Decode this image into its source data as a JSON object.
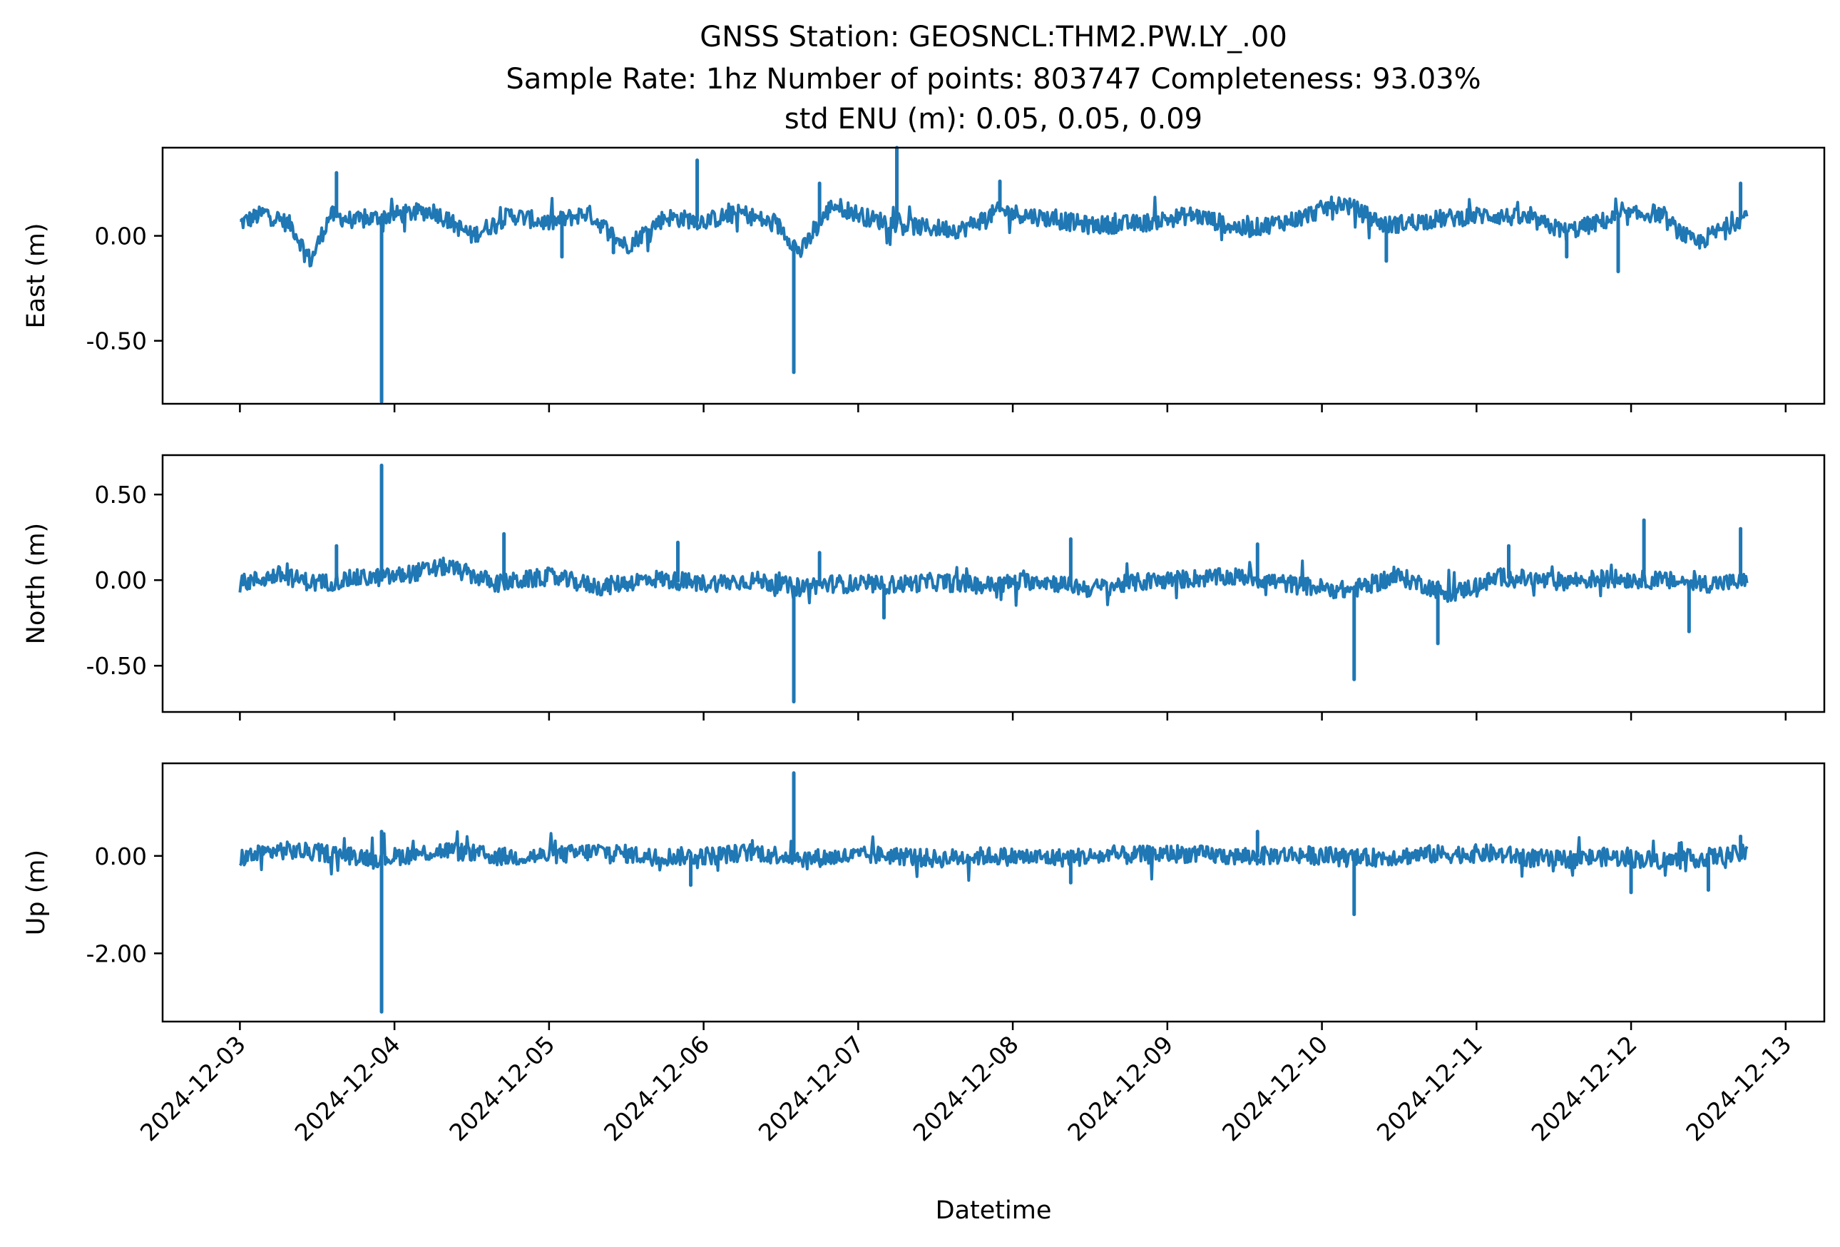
{
  "title": {
    "line1": "GNSS Station: GEOSNCL:THM2.PW.LY_.00",
    "line2": "Sample Rate: 1hz   Number of points: 803747    Completeness:  93.03%",
    "line3": "std ENU (m):  0.05, 0.05, 0.09"
  },
  "colors": {
    "series": "#1f77b4",
    "axes": "#000000",
    "background": "#ffffff"
  },
  "chart_data": {
    "type": "line",
    "xlabel": "Datetime",
    "x_ticks": [
      "2024-12-03",
      "2024-12-04",
      "2024-12-05",
      "2024-12-06",
      "2024-12-07",
      "2024-12-08",
      "2024-12-09",
      "2024-12-10",
      "2024-12-11",
      "2024-12-12",
      "2024-12-13"
    ],
    "x_range": [
      "2024-12-02T12:00",
      "2024-12-13T06:00"
    ],
    "data_range": [
      "2024-12-03T00:00",
      "2024-12-12T18:00"
    ],
    "grid": false,
    "shared_x": true,
    "panels": [
      {
        "id": "east",
        "ylabel": "East (m)",
        "ylim": [
          -0.8,
          0.42
        ],
        "y_ticks": [
          {
            "value": 0.0,
            "label": "0.00"
          },
          {
            "value": -0.5,
            "label": "-0.50"
          }
        ],
        "baseline": [
          [
            "2024-12-03T00:00",
            0.06
          ],
          [
            "2024-12-03T04:00",
            0.11
          ],
          [
            "2024-12-03T08:00",
            0.05
          ],
          [
            "2024-12-03T11:00",
            -0.12
          ],
          [
            "2024-12-03T14:00",
            0.1
          ],
          [
            "2024-12-03T18:00",
            0.07
          ],
          [
            "2024-12-04T00:00",
            0.1
          ],
          [
            "2024-12-04T06:00",
            0.12
          ],
          [
            "2024-12-04T12:00",
            0.0
          ],
          [
            "2024-12-04T18:00",
            0.1
          ],
          [
            "2024-12-05T00:00",
            0.06
          ],
          [
            "2024-12-05T06:00",
            0.11
          ],
          [
            "2024-12-05T12:00",
            -0.05
          ],
          [
            "2024-12-05T18:00",
            0.09
          ],
          [
            "2024-12-06T00:00",
            0.07
          ],
          [
            "2024-12-06T06:00",
            0.11
          ],
          [
            "2024-12-06T12:00",
            0.04
          ],
          [
            "2024-12-06T15:00",
            -0.08
          ],
          [
            "2024-12-06T20:00",
            0.15
          ],
          [
            "2024-12-07T02:00",
            0.08
          ],
          [
            "2024-12-07T10:00",
            0.04
          ],
          [
            "2024-12-07T16:00",
            0.03
          ],
          [
            "2024-12-07T22:00",
            0.12
          ],
          [
            "2024-12-08T06:00",
            0.08
          ],
          [
            "2024-12-08T12:00",
            0.05
          ],
          [
            "2024-12-08T20:00",
            0.06
          ],
          [
            "2024-12-09T04:00",
            0.1
          ],
          [
            "2024-12-09T12:00",
            0.03
          ],
          [
            "2024-12-09T20:00",
            0.08
          ],
          [
            "2024-12-10T03:00",
            0.16
          ],
          [
            "2024-12-10T10:00",
            0.05
          ],
          [
            "2024-12-10T18:00",
            0.08
          ],
          [
            "2024-12-11T02:00",
            0.1
          ],
          [
            "2024-12-11T08:00",
            0.08
          ],
          [
            "2024-12-11T14:00",
            0.02
          ],
          [
            "2024-12-11T22:00",
            0.09
          ],
          [
            "2024-12-12T04:00",
            0.11
          ],
          [
            "2024-12-12T10:00",
            -0.04
          ],
          [
            "2024-12-12T18:00",
            0.1
          ]
        ],
        "spikes": [
          [
            "2024-12-03T15:00",
            0.3
          ],
          [
            "2024-12-03T22:00",
            -0.79
          ],
          [
            "2024-12-05T02:00",
            -0.1
          ],
          [
            "2024-12-05T10:00",
            -0.08
          ],
          [
            "2024-12-05T23:00",
            0.36
          ],
          [
            "2024-12-06T14:00",
            -0.65
          ],
          [
            "2024-12-06T18:00",
            0.25
          ],
          [
            "2024-12-07T06:00",
            0.42
          ],
          [
            "2024-12-07T22:00",
            0.26
          ],
          [
            "2024-12-10T10:00",
            -0.12
          ],
          [
            "2024-12-11T14:00",
            -0.1
          ],
          [
            "2024-12-11T22:00",
            -0.17
          ],
          [
            "2024-12-12T17:00",
            0.25
          ]
        ]
      },
      {
        "id": "north",
        "ylabel": "North (m)",
        "ylim": [
          -0.77,
          0.73
        ],
        "y_ticks": [
          {
            "value": 0.5,
            "label": "0.50"
          },
          {
            "value": 0.0,
            "label": "0.00"
          },
          {
            "value": -0.5,
            "label": "-0.50"
          }
        ],
        "baseline": [
          [
            "2024-12-03T00:00",
            -0.02
          ],
          [
            "2024-12-03T06:00",
            0.03
          ],
          [
            "2024-12-03T12:00",
            -0.02
          ],
          [
            "2024-12-03T18:00",
            0.01
          ],
          [
            "2024-12-04T00:00",
            0.02
          ],
          [
            "2024-12-04T08:00",
            0.08
          ],
          [
            "2024-12-04T16:00",
            -0.02
          ],
          [
            "2024-12-05T00:00",
            0.02
          ],
          [
            "2024-12-05T08:00",
            -0.04
          ],
          [
            "2024-12-05T16:00",
            0.01
          ],
          [
            "2024-12-06T00:00",
            -0.02
          ],
          [
            "2024-12-06T08:00",
            0.0
          ],
          [
            "2024-12-06T14:00",
            -0.04
          ],
          [
            "2024-12-06T20:00",
            -0.02
          ],
          [
            "2024-12-07T04:00",
            -0.03
          ],
          [
            "2024-12-07T12:00",
            -0.01
          ],
          [
            "2024-12-07T20:00",
            -0.03
          ],
          [
            "2024-12-08T04:00",
            0.0
          ],
          [
            "2024-12-08T12:00",
            -0.05
          ],
          [
            "2024-12-08T20:00",
            -0.01
          ],
          [
            "2024-12-09T04:00",
            0.01
          ],
          [
            "2024-12-09T12:00",
            0.02
          ],
          [
            "2024-12-09T20:00",
            -0.03
          ],
          [
            "2024-12-10T04:00",
            -0.06
          ],
          [
            "2024-12-10T12:00",
            0.02
          ],
          [
            "2024-12-10T20:00",
            -0.08
          ],
          [
            "2024-12-11T04:00",
            0.02
          ],
          [
            "2024-12-11T12:00",
            -0.01
          ],
          [
            "2024-12-11T20:00",
            0.01
          ],
          [
            "2024-12-12T04:00",
            0.0
          ],
          [
            "2024-12-12T12:00",
            -0.02
          ],
          [
            "2024-12-12T18:00",
            -0.01
          ]
        ],
        "spikes": [
          [
            "2024-12-03T22:00",
            0.67
          ],
          [
            "2024-12-03T15:00",
            0.2
          ],
          [
            "2024-12-04T17:00",
            0.27
          ],
          [
            "2024-12-05T20:00",
            0.22
          ],
          [
            "2024-12-06T14:00",
            -0.71
          ],
          [
            "2024-12-06T18:00",
            0.16
          ],
          [
            "2024-12-07T04:00",
            -0.22
          ],
          [
            "2024-12-08T09:00",
            0.24
          ],
          [
            "2024-12-09T14:00",
            0.21
          ],
          [
            "2024-12-10T05:00",
            -0.58
          ],
          [
            "2024-12-10T18:00",
            -0.37
          ],
          [
            "2024-12-11T05:00",
            0.2
          ],
          [
            "2024-12-12T02:00",
            0.35
          ],
          [
            "2024-12-12T09:00",
            -0.3
          ],
          [
            "2024-12-12T17:00",
            0.3
          ]
        ]
      },
      {
        "id": "up",
        "ylabel": "Up (m)",
        "ylim": [
          -3.4,
          1.9
        ],
        "y_ticks": [
          {
            "value": 0.0,
            "label": "0.00"
          },
          {
            "value": -2.0,
            "label": "-2.00"
          }
        ],
        "baseline": [
          [
            "2024-12-03T00:00",
            -0.05
          ],
          [
            "2024-12-03T06:00",
            0.12
          ],
          [
            "2024-12-03T14:00",
            0.05
          ],
          [
            "2024-12-03T22:00",
            -0.05
          ],
          [
            "2024-12-04T08:00",
            0.12
          ],
          [
            "2024-12-04T16:00",
            -0.02
          ],
          [
            "2024-12-05T00:00",
            0.0
          ],
          [
            "2024-12-05T08:00",
            0.1
          ],
          [
            "2024-12-05T16:00",
            -0.02
          ],
          [
            "2024-12-06T00:00",
            0.0
          ],
          [
            "2024-12-06T08:00",
            0.08
          ],
          [
            "2024-12-06T16:00",
            -0.05
          ],
          [
            "2024-12-07T04:00",
            0.02
          ],
          [
            "2024-12-07T12:00",
            -0.06
          ],
          [
            "2024-12-07T20:00",
            0.0
          ],
          [
            "2024-12-08T06:00",
            -0.04
          ],
          [
            "2024-12-08T16:00",
            0.0
          ],
          [
            "2024-12-09T02:00",
            0.05
          ],
          [
            "2024-12-09T12:00",
            -0.02
          ],
          [
            "2024-12-09T20:00",
            0.03
          ],
          [
            "2024-12-10T06:00",
            -0.05
          ],
          [
            "2024-12-10T16:00",
            0.03
          ],
          [
            "2024-12-11T02:00",
            0.05
          ],
          [
            "2024-12-11T12:00",
            -0.08
          ],
          [
            "2024-12-11T20:00",
            -0.02
          ],
          [
            "2024-12-12T06:00",
            -0.1
          ],
          [
            "2024-12-12T14:00",
            0.0
          ],
          [
            "2024-12-12T18:00",
            0.05
          ]
        ],
        "spikes": [
          [
            "2024-12-03T22:00",
            -3.2
          ],
          [
            "2024-12-03T22:00",
            0.5
          ],
          [
            "2024-12-05T22:00",
            -0.6
          ],
          [
            "2024-12-06T14:00",
            1.7
          ],
          [
            "2024-12-08T09:00",
            -0.55
          ],
          [
            "2024-12-09T14:00",
            0.5
          ],
          [
            "2024-12-10T05:00",
            -1.2
          ],
          [
            "2024-12-12T00:00",
            -0.75
          ],
          [
            "2024-12-12T12:00",
            -0.7
          ],
          [
            "2024-12-12T17:00",
            0.4
          ]
        ]
      }
    ]
  }
}
